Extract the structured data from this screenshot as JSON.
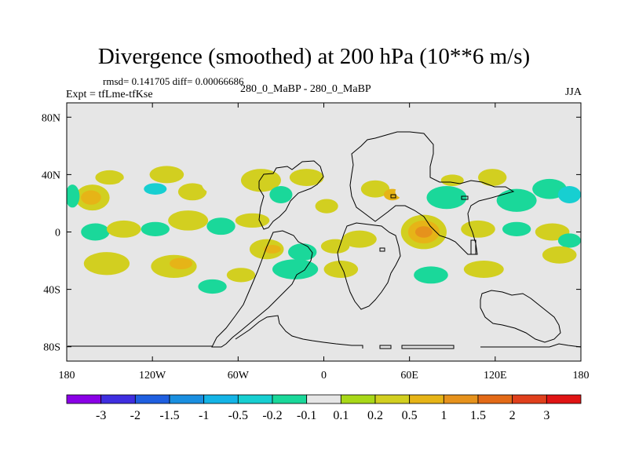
{
  "header": {
    "title": "Divergence (smoothed) at 200 hPa (10**6 m/s)",
    "stats": "rmsd= 0.141705 diff= 0.00066686",
    "left_label": "Expt = tfLme-tfKse",
    "center_label": "280_0_MaBP - 280_0_MaBP",
    "right_label": "JJA"
  },
  "chart_data": {
    "type": "heatmap",
    "title": "Divergence (smoothed) at 200 hPa (10**6 m/s)",
    "x_range": [
      -180,
      180
    ],
    "y_range": [
      -90,
      90
    ],
    "x_ticks": [
      {
        "value": -180,
        "label": "180"
      },
      {
        "value": -120,
        "label": "120W"
      },
      {
        "value": -60,
        "label": "60W"
      },
      {
        "value": 0,
        "label": "0"
      },
      {
        "value": 60,
        "label": "60E"
      },
      {
        "value": 120,
        "label": "120E"
      },
      {
        "value": 180,
        "label": "180"
      }
    ],
    "y_ticks": [
      {
        "value": 80,
        "label": "80N"
      },
      {
        "value": 40,
        "label": "40N"
      },
      {
        "value": 0,
        "label": "0"
      },
      {
        "value": -40,
        "label": "40S"
      },
      {
        "value": -80,
        "label": "80S"
      }
    ],
    "colorbar": {
      "colors": [
        "#8a00e6",
        "#3f2ee0",
        "#1f5fe0",
        "#1a8fe0",
        "#14b4e6",
        "#17cfd1",
        "#1ad89a",
        "#e6e6e6",
        "#a8d818",
        "#d2cf20",
        "#e6b417",
        "#e6921c",
        "#e36a17",
        "#e0401c",
        "#e01414"
      ],
      "labels": [
        "-3",
        "-2",
        "-1.5",
        "-1",
        "-0.5",
        "-0.2",
        "-0.1",
        "0.1",
        "0.2",
        "0.5",
        "1",
        "1.5",
        "2",
        "3"
      ]
    },
    "blobs": [
      {
        "lon": -162,
        "lat": 24,
        "rlon": 12,
        "rlat": 9,
        "level": 0.2
      },
      {
        "lon": -163,
        "lat": 24,
        "rlon": 7,
        "rlat": 5,
        "level": 0.5
      },
      {
        "lon": -176,
        "lat": 25,
        "rlon": 5,
        "rlat": 8,
        "level": -0.2
      },
      {
        "lon": -150,
        "lat": 38,
        "rlon": 10,
        "rlat": 5,
        "level": 0.2
      },
      {
        "lon": -130,
        "lat": 32,
        "rlon": 14,
        "rlat": 7,
        "level": -0.1
      },
      {
        "lon": -118,
        "lat": 30,
        "rlon": 8,
        "rlat": 4,
        "level": -0.5
      },
      {
        "lon": -110,
        "lat": 40,
        "rlon": 12,
        "rlat": 6,
        "level": 0.2
      },
      {
        "lon": -92,
        "lat": 28,
        "rlon": 10,
        "rlat": 6,
        "level": 0.2
      },
      {
        "lon": -80,
        "lat": 36,
        "rlon": 6,
        "rlat": 8,
        "level": -0.1
      },
      {
        "lon": -44,
        "lat": 36,
        "rlon": 14,
        "rlat": 8,
        "level": 0.2
      },
      {
        "lon": -30,
        "lat": 26,
        "rlon": 8,
        "rlat": 6,
        "level": -0.2
      },
      {
        "lon": -12,
        "lat": 38,
        "rlon": 12,
        "rlat": 6,
        "level": 0.2
      },
      {
        "lon": 2,
        "lat": 18,
        "rlon": 8,
        "rlat": 5,
        "level": 0.2
      },
      {
        "lon": 20,
        "lat": 16,
        "rlon": 10,
        "rlat": 6,
        "level": -0.1
      },
      {
        "lon": 36,
        "lat": 30,
        "rlon": 10,
        "rlat": 6,
        "level": 0.2
      },
      {
        "lon": 48,
        "lat": 26,
        "rlon": 6,
        "rlat": 4,
        "level": 0.5
      },
      {
        "lon": 62,
        "lat": 28,
        "rlon": 12,
        "rlat": 6,
        "level": -0.1
      },
      {
        "lon": 86,
        "lat": 24,
        "rlon": 14,
        "rlat": 8,
        "level": -0.2
      },
      {
        "lon": 90,
        "lat": 36,
        "rlon": 8,
        "rlat": 4,
        "level": 0.2
      },
      {
        "lon": 108,
        "lat": 28,
        "rlon": 8,
        "rlat": 10,
        "level": -0.1
      },
      {
        "lon": 118,
        "lat": 38,
        "rlon": 10,
        "rlat": 6,
        "level": 0.2
      },
      {
        "lon": 135,
        "lat": 22,
        "rlon": 14,
        "rlat": 8,
        "level": -0.2
      },
      {
        "lon": 158,
        "lat": 30,
        "rlon": 12,
        "rlat": 7,
        "level": -0.2
      },
      {
        "lon": 172,
        "lat": 26,
        "rlon": 8,
        "rlat": 6,
        "level": -0.5
      },
      {
        "lon": -160,
        "lat": 0,
        "rlon": 10,
        "rlat": 6,
        "level": -0.2
      },
      {
        "lon": -140,
        "lat": 2,
        "rlon": 12,
        "rlat": 6,
        "level": 0.2
      },
      {
        "lon": -118,
        "lat": 2,
        "rlon": 10,
        "rlat": 5,
        "level": -0.2
      },
      {
        "lon": -95,
        "lat": 8,
        "rlon": 14,
        "rlat": 7,
        "level": 0.2
      },
      {
        "lon": -72,
        "lat": 4,
        "rlon": 10,
        "rlat": 6,
        "level": -0.2
      },
      {
        "lon": -50,
        "lat": 8,
        "rlon": 12,
        "rlat": 5,
        "level": 0.2
      },
      {
        "lon": -40,
        "lat": -12,
        "rlon": 12,
        "rlat": 7,
        "level": 0.2
      },
      {
        "lon": -36,
        "lat": -12,
        "rlon": 6,
        "rlat": 3,
        "level": 0.5
      },
      {
        "lon": -15,
        "lat": -14,
        "rlon": 10,
        "rlat": 6,
        "level": -0.2
      },
      {
        "lon": 8,
        "lat": -10,
        "rlon": 10,
        "rlat": 5,
        "level": 0.2
      },
      {
        "lon": 25,
        "lat": -5,
        "rlon": 12,
        "rlat": 6,
        "level": 0.2
      },
      {
        "lon": 45,
        "lat": -18,
        "rlon": 14,
        "rlat": 9,
        "level": -0.1
      },
      {
        "lon": 70,
        "lat": 0,
        "rlon": 16,
        "rlat": 12,
        "level": 0.2
      },
      {
        "lon": 70,
        "lat": 0,
        "rlon": 11,
        "rlat": 8,
        "level": 0.5
      },
      {
        "lon": 70,
        "lat": 0,
        "rlon": 6,
        "rlat": 4,
        "level": 1
      },
      {
        "lon": 86,
        "lat": -14,
        "rlon": 8,
        "rlat": 6,
        "level": -0.1
      },
      {
        "lon": 108,
        "lat": 2,
        "rlon": 12,
        "rlat": 6,
        "level": 0.2
      },
      {
        "lon": 135,
        "lat": 2,
        "rlon": 10,
        "rlat": 5,
        "level": -0.2
      },
      {
        "lon": 160,
        "lat": 0,
        "rlon": 12,
        "rlat": 6,
        "level": 0.2
      },
      {
        "lon": 172,
        "lat": -6,
        "rlon": 8,
        "rlat": 5,
        "level": -0.2
      },
      {
        "lon": -152,
        "lat": -22,
        "rlon": 16,
        "rlat": 8,
        "level": 0.2
      },
      {
        "lon": -128,
        "lat": -34,
        "rlon": 12,
        "rlat": 6,
        "level": -0.1
      },
      {
        "lon": -105,
        "lat": -24,
        "rlon": 16,
        "rlat": 8,
        "level": 0.2
      },
      {
        "lon": -100,
        "lat": -22,
        "rlon": 8,
        "rlat": 4,
        "level": 0.5
      },
      {
        "lon": -160,
        "lat": -46,
        "rlon": 8,
        "rlat": 5,
        "level": -0.1
      },
      {
        "lon": -78,
        "lat": -38,
        "rlon": 10,
        "rlat": 5,
        "level": -0.2
      },
      {
        "lon": -58,
        "lat": -30,
        "rlon": 10,
        "rlat": 5,
        "level": 0.2
      },
      {
        "lon": -20,
        "lat": -26,
        "rlon": 16,
        "rlat": 7,
        "level": -0.2
      },
      {
        "lon": 12,
        "lat": -26,
        "rlon": 12,
        "rlat": 6,
        "level": 0.2
      },
      {
        "lon": 75,
        "lat": -30,
        "rlon": 12,
        "rlat": 6,
        "level": -0.2
      },
      {
        "lon": 112,
        "lat": -26,
        "rlon": 14,
        "rlat": 6,
        "level": 0.2
      },
      {
        "lon": 145,
        "lat": -30,
        "rlon": 14,
        "rlat": 6,
        "level": -0.1
      },
      {
        "lon": 165,
        "lat": -16,
        "rlon": 12,
        "rlat": 6,
        "level": 0.2
      },
      {
        "lon": 110,
        "lat": -52,
        "rlon": 10,
        "rlat": 5,
        "level": -0.1
      }
    ]
  }
}
